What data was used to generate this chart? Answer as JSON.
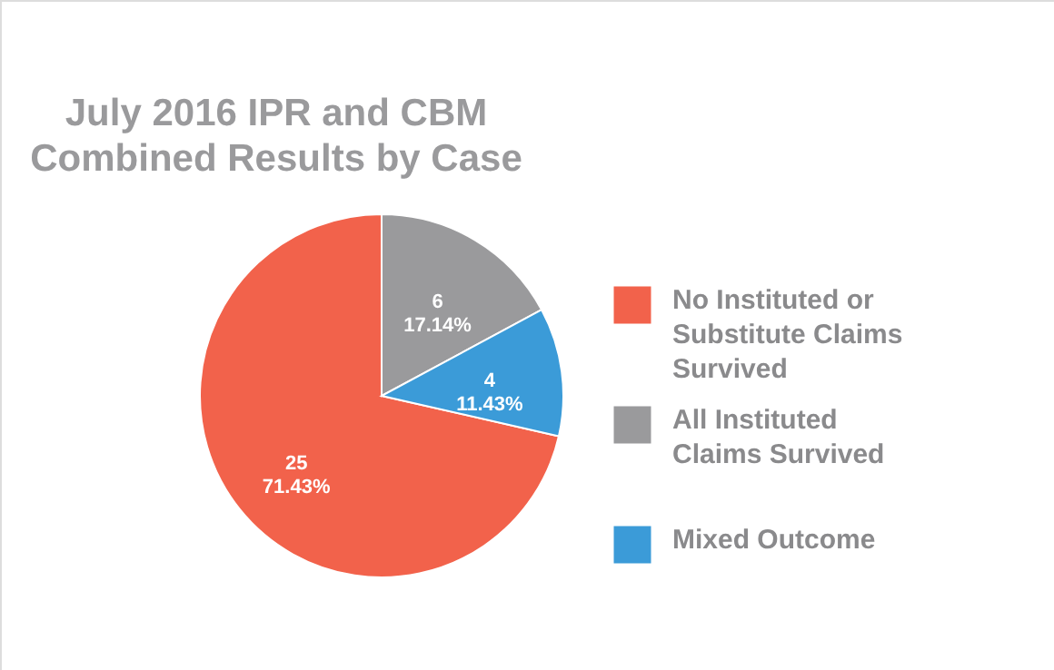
{
  "chart_data": {
    "type": "pie",
    "title": "July 2016 IPR and CBM Combined Results by Case",
    "categories": [
      "No Instituted or Substitute Claims Survived",
      "All Instituted Claims Survived",
      "Mixed Outcome"
    ],
    "values": [
      25,
      6,
      4
    ],
    "colors": [
      "#f2624b",
      "#9a9a9c",
      "#3b9bd8"
    ],
    "value_labels": [
      "25 71.43%",
      "6 17.14%",
      "4 11.43%"
    ],
    "legend": "right"
  }
}
